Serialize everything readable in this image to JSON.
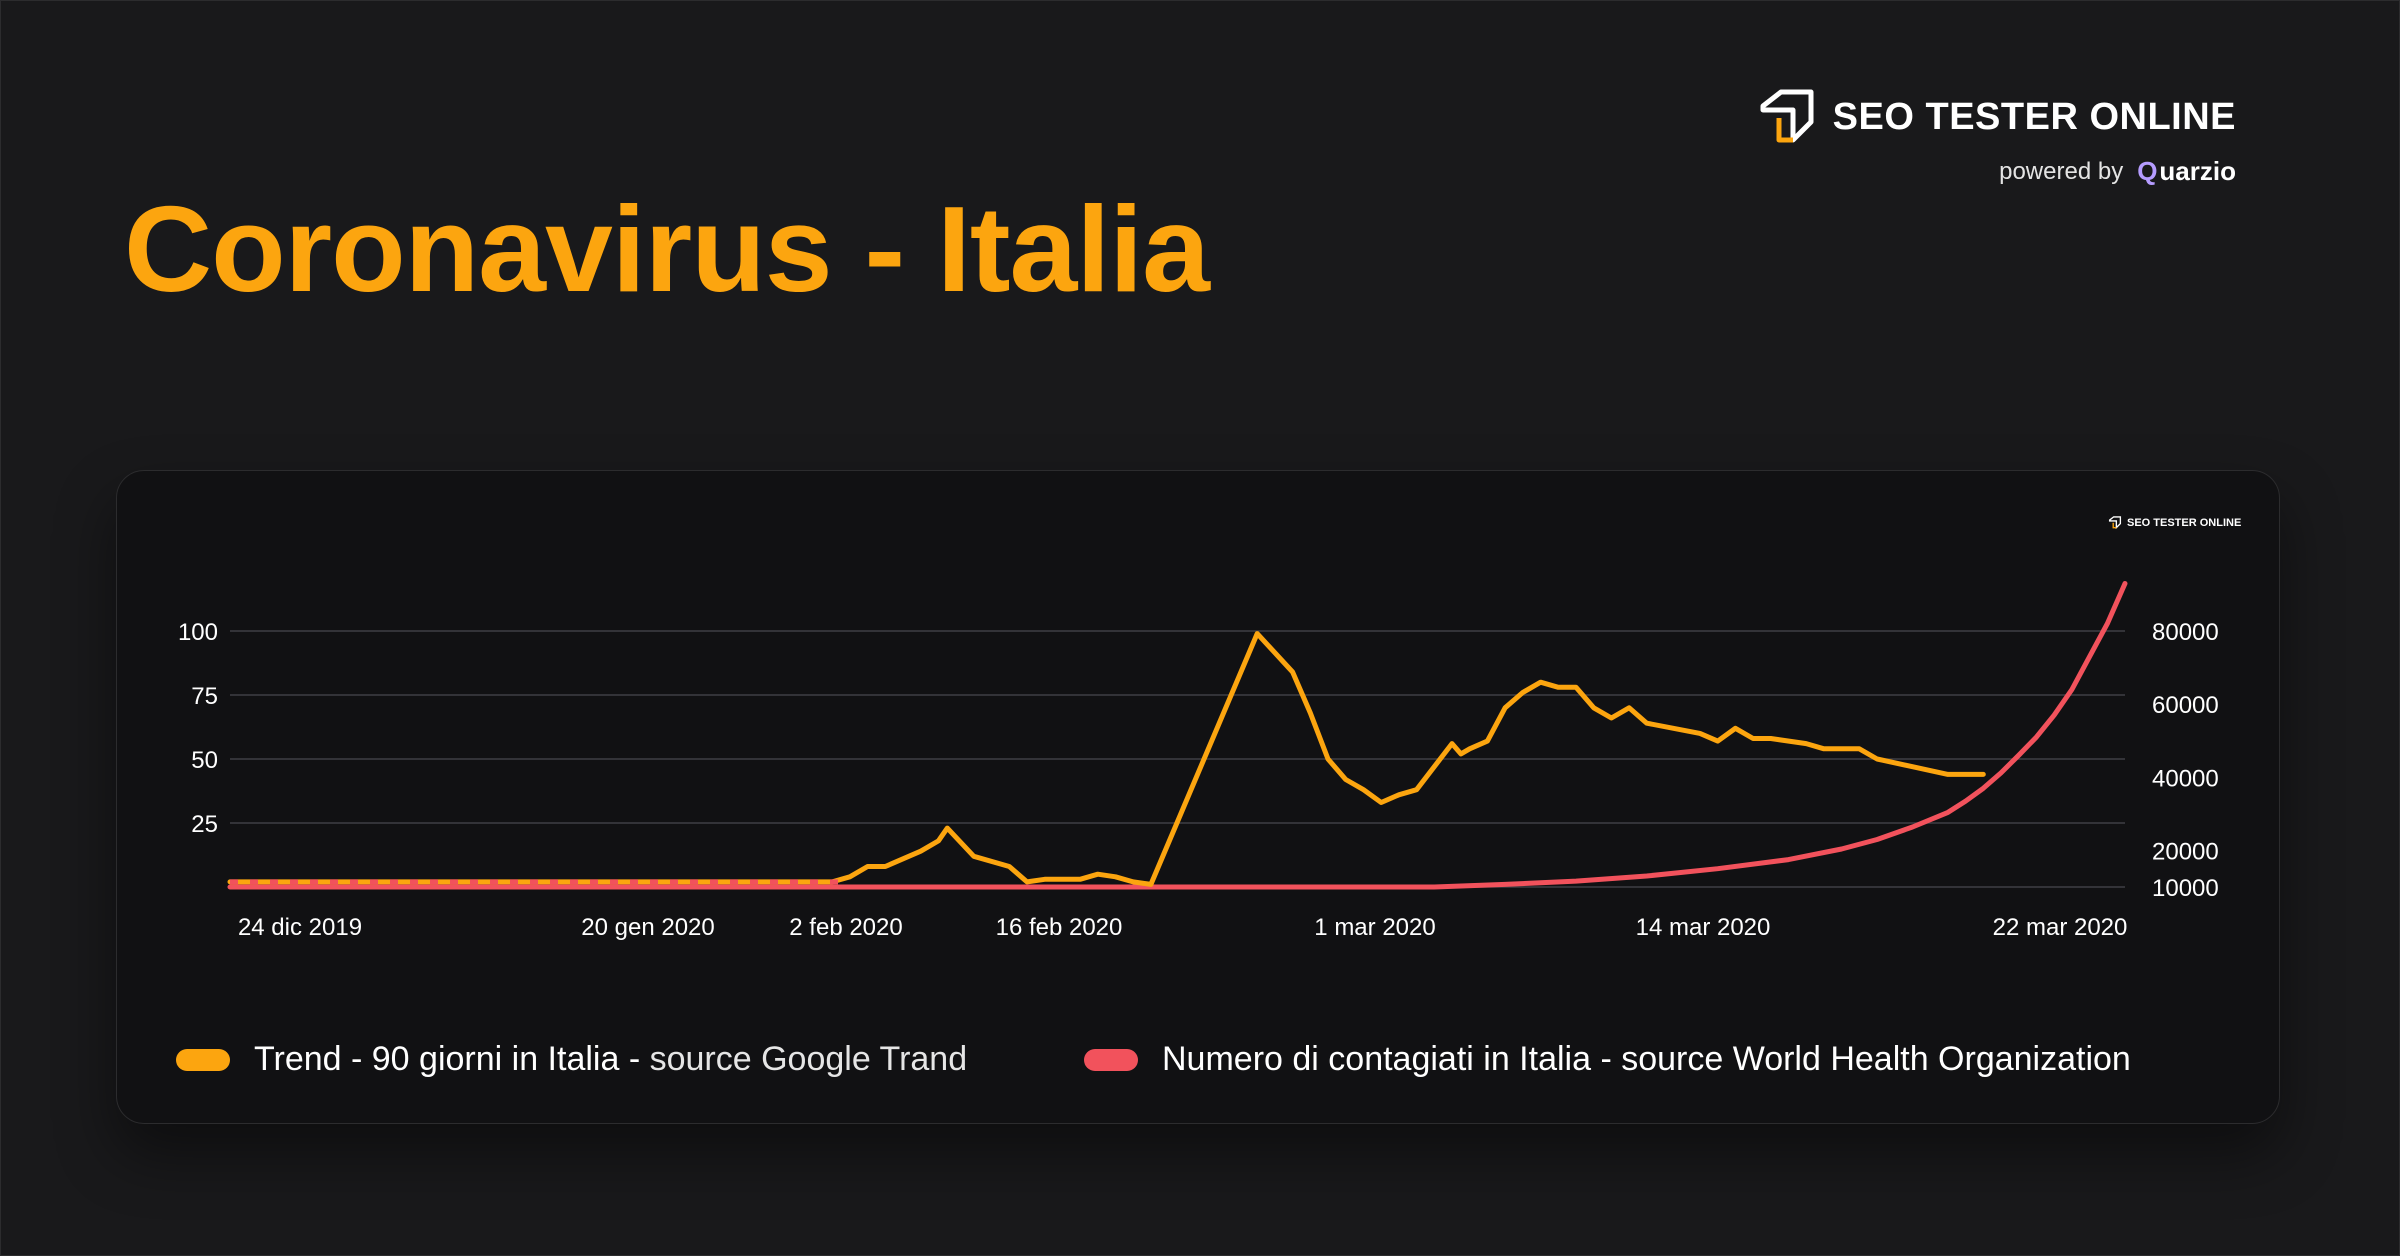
{
  "page": {
    "title": "Coronavirus - Italia"
  },
  "brand": {
    "name": "SEO TESTER ONLINE",
    "powered_by": "powered by",
    "partner": "uarzio",
    "partner_initial": "Q",
    "small_name": "SEO TESTER ONLINE"
  },
  "colors": {
    "background": "#19191b",
    "card": "#111113",
    "trend": "#fca50f",
    "cases": "#f2525c",
    "grid": "#3f3f44"
  },
  "chart_data": {
    "type": "line",
    "x_ticks": [
      "24 dic 2019",
      "20 gen 2020",
      "2 feb 2020",
      "16 feb 2020",
      "1 mar 2020",
      "14 mar 2020",
      "22 mar 2020"
    ],
    "x_tick_days": [
      0,
      27,
      40,
      54,
      68,
      81,
      89
    ],
    "y_left": {
      "ticks": [
        25,
        50,
        75,
        100
      ],
      "range": [
        0,
        100
      ]
    },
    "y_right": {
      "ticks": [
        10000,
        20000,
        40000,
        60000,
        80000
      ],
      "range": [
        10000,
        90000
      ]
    },
    "series": [
      {
        "name": "Trend - 90 giorni in Italia",
        "source": "source Google Trand",
        "axis": "left",
        "color": "#fca50f",
        "points": [
          [
            0,
            2
          ],
          [
            34,
            2
          ],
          [
            35,
            4
          ],
          [
            36,
            8
          ],
          [
            37,
            8
          ],
          [
            39,
            14
          ],
          [
            40,
            18
          ],
          [
            40.5,
            23
          ],
          [
            42,
            12
          ],
          [
            44,
            8
          ],
          [
            45,
            2
          ],
          [
            46,
            3
          ],
          [
            48,
            3
          ],
          [
            49,
            5
          ],
          [
            50,
            4
          ],
          [
            51,
            2
          ],
          [
            52,
            1
          ],
          [
            58,
            99
          ],
          [
            60,
            84
          ],
          [
            61,
            68
          ],
          [
            62,
            50
          ],
          [
            63,
            42
          ],
          [
            64,
            38
          ],
          [
            65,
            33
          ],
          [
            66,
            36
          ],
          [
            67,
            38
          ],
          [
            69,
            56
          ],
          [
            69.5,
            52
          ],
          [
            70,
            54
          ],
          [
            71,
            57
          ],
          [
            72,
            70
          ],
          [
            73,
            76
          ],
          [
            74,
            80
          ],
          [
            75,
            78
          ],
          [
            76,
            78
          ],
          [
            77,
            70
          ],
          [
            78,
            66
          ],
          [
            79,
            70
          ],
          [
            80,
            64
          ],
          [
            83,
            60
          ],
          [
            84,
            57
          ],
          [
            85,
            62
          ],
          [
            86,
            58
          ],
          [
            87,
            58
          ],
          [
            89,
            56
          ],
          [
            90,
            54
          ],
          [
            91,
            54
          ],
          [
            92,
            54
          ],
          [
            93,
            50
          ],
          [
            95,
            47
          ],
          [
            97,
            44
          ],
          [
            99,
            44
          ]
        ]
      },
      {
        "name": "Numero di contagiati in Italia",
        "source": "source World Health Organization",
        "axis": "right",
        "color": "#f2525c",
        "points": [
          [
            0,
            10000
          ],
          [
            68,
            10000
          ],
          [
            72,
            10700
          ],
          [
            76,
            11600
          ],
          [
            80,
            13000
          ],
          [
            84,
            15000
          ],
          [
            88,
            17500
          ],
          [
            91,
            20400
          ],
          [
            93,
            23000
          ],
          [
            95,
            26400
          ],
          [
            97,
            30400
          ],
          [
            98,
            33500
          ],
          [
            99,
            37000
          ],
          [
            100,
            41200
          ],
          [
            101,
            46000
          ],
          [
            102,
            51000
          ],
          [
            103,
            57000
          ],
          [
            104,
            64000
          ],
          [
            105,
            73000
          ],
          [
            106,
            82000
          ],
          [
            107,
            93000
          ]
        ]
      }
    ],
    "legend": "bottom"
  },
  "legend": {
    "trend_label": "Trend - 90 giorni in Italia - ",
    "trend_source": "source Google Trand",
    "cases_label": "Numero di contagiati in Italia - source World Health Organization"
  }
}
